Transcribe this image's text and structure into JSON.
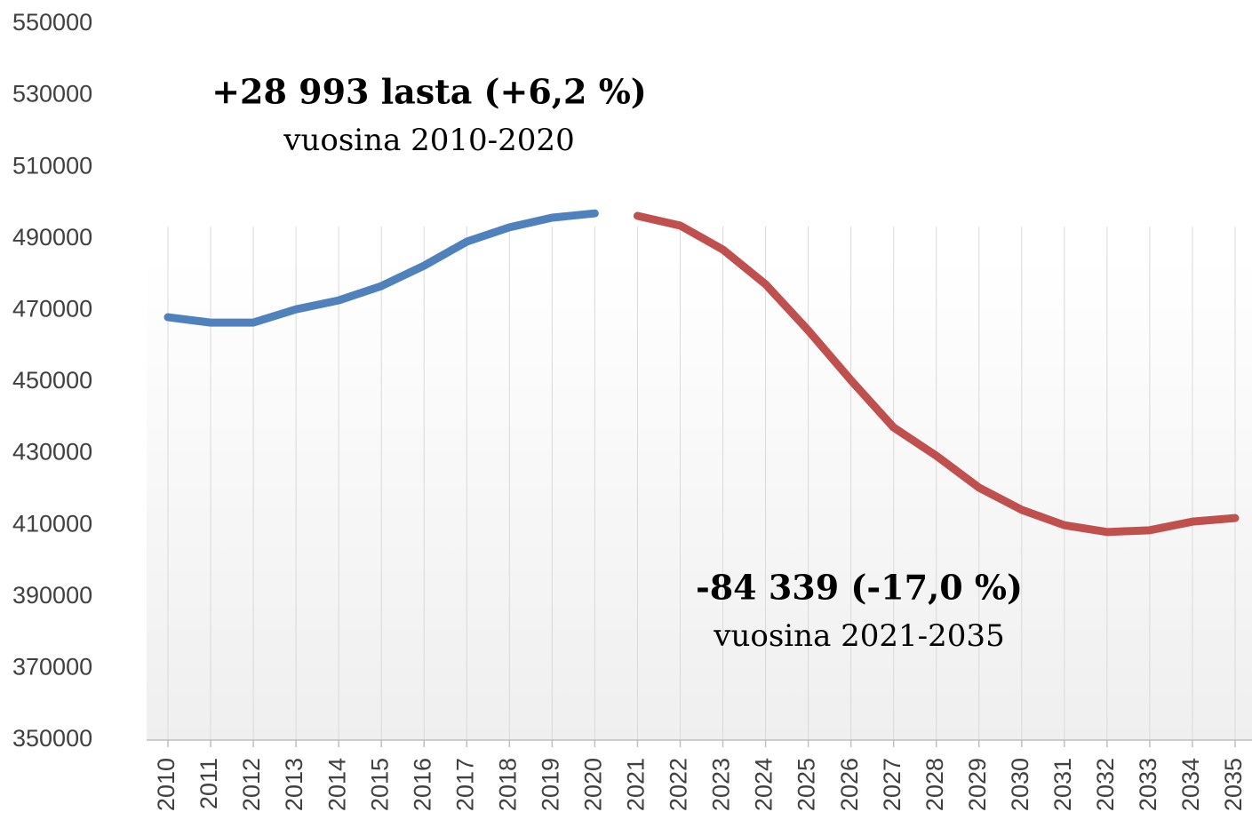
{
  "chart_data": {
    "type": "line",
    "categories": [
      "2010",
      "2011",
      "2012",
      "2013",
      "2014",
      "2015",
      "2016",
      "2017",
      "2018",
      "2019",
      "2020",
      "2021",
      "2022",
      "2023",
      "2024",
      "2025",
      "2026",
      "2027",
      "2028",
      "2029",
      "2030",
      "2031",
      "2032",
      "2033",
      "2034",
      "2035"
    ],
    "series": [
      {
        "color": "#4f81bd",
        "values": [
          468100,
          466600,
          466600,
          470300,
          472800,
          476800,
          482500,
          489200,
          493200,
          495900,
          497100,
          null,
          null,
          null,
          null,
          null,
          null,
          null,
          null,
          null,
          null,
          null,
          null,
          null,
          null,
          null
        ]
      },
      {
        "color": "#c0504d",
        "values": [
          null,
          null,
          null,
          null,
          null,
          null,
          null,
          null,
          null,
          null,
          null,
          496400,
          493700,
          487000,
          477300,
          464400,
          450500,
          437300,
          429400,
          420500,
          414300,
          410000,
          408100,
          408600,
          411000,
          412000
        ]
      }
    ],
    "ylim": [
      350000,
      550000
    ],
    "yticks": [
      350000,
      370000,
      390000,
      410000,
      430000,
      450000,
      470000,
      490000,
      510000,
      530000,
      550000
    ],
    "grid": true,
    "annotations": [
      {
        "title": "+28 993 lasta (+6,2 %)",
        "text": "vuosina 2010-2020"
      },
      {
        "title": "-84 339 (-17,0 %)",
        "text": "vuosina 2021-2035"
      }
    ]
  }
}
